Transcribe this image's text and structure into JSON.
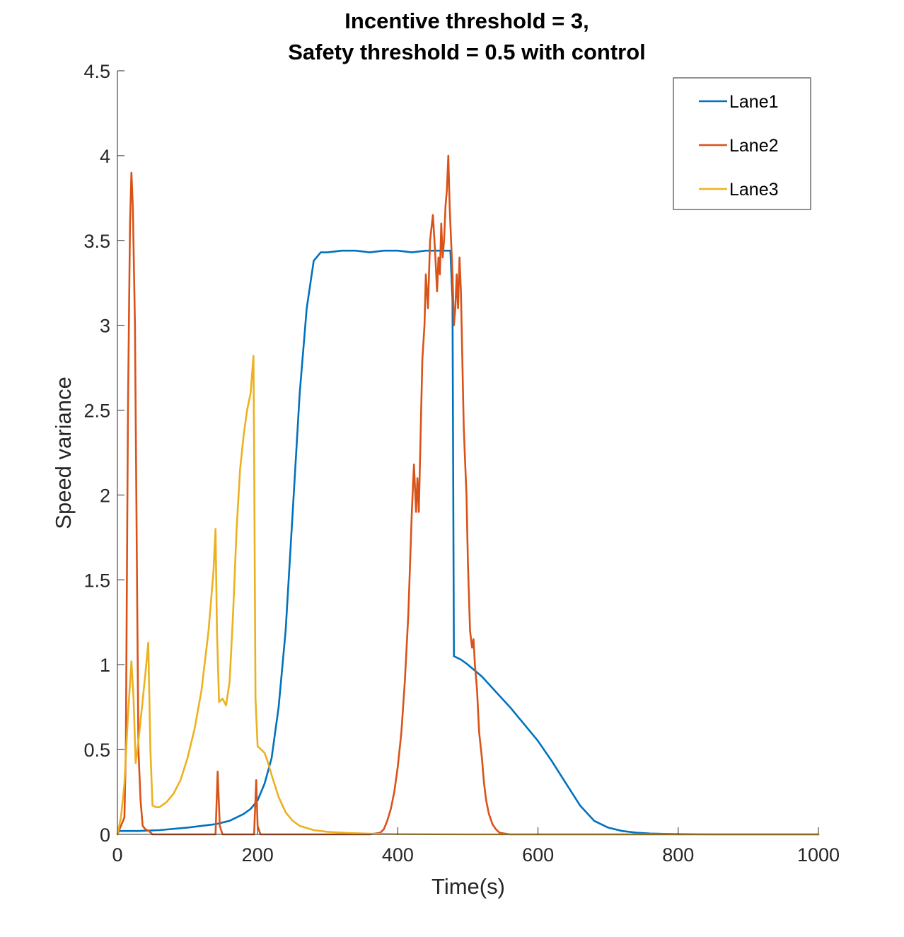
{
  "chart_data": {
    "type": "line",
    "title": [
      "Incentive threshold = 3,",
      "Safety threshold = 0.5 with control"
    ],
    "xlabel": "Time(s)",
    "ylabel": "Speed variance",
    "xlim": [
      0,
      1000
    ],
    "ylim": [
      0,
      4.5
    ],
    "xticks": [
      0,
      200,
      400,
      600,
      800,
      1000
    ],
    "xtick_labels": [
      "0",
      "200",
      "400",
      "600",
      "800",
      "1000"
    ],
    "yticks": [
      0,
      0.5,
      1,
      1.5,
      2,
      2.5,
      3,
      3.5,
      4,
      4.5
    ],
    "ytick_labels": [
      "0",
      "0.5",
      "1",
      "1.5",
      "2",
      "2.5",
      "3",
      "3.5",
      "4",
      "4.5"
    ],
    "grid": false,
    "legend_position": "top-right",
    "series": [
      {
        "name": "Lane1",
        "color": "#0072BD",
        "x": [
          0,
          2,
          5,
          10,
          30,
          60,
          100,
          140,
          160,
          180,
          190,
          200,
          210,
          220,
          230,
          240,
          250,
          260,
          270,
          280,
          290,
          300,
          320,
          340,
          360,
          380,
          400,
          420,
          440,
          460,
          470,
          475,
          478,
          480,
          490,
          500,
          520,
          540,
          560,
          580,
          600,
          620,
          640,
          660,
          680,
          700,
          720,
          740,
          760,
          780,
          800,
          850,
          900,
          950,
          1000
        ],
        "y": [
          0.0,
          0.02,
          0.02,
          0.02,
          0.02,
          0.025,
          0.04,
          0.06,
          0.08,
          0.12,
          0.15,
          0.2,
          0.3,
          0.45,
          0.75,
          1.2,
          1.9,
          2.6,
          3.1,
          3.38,
          3.43,
          3.43,
          3.44,
          3.44,
          3.43,
          3.44,
          3.44,
          3.43,
          3.44,
          3.44,
          3.44,
          3.44,
          3.15,
          1.05,
          1.03,
          1.0,
          0.93,
          0.84,
          0.75,
          0.65,
          0.55,
          0.43,
          0.3,
          0.17,
          0.08,
          0.04,
          0.02,
          0.01,
          0.005,
          0.003,
          0.002,
          0.0,
          0.0,
          0.0,
          0.0
        ]
      },
      {
        "name": "Lane2",
        "color": "#D95319",
        "x": [
          0,
          5,
          10,
          12,
          15,
          18,
          20,
          22,
          25,
          28,
          30,
          33,
          36,
          40,
          45,
          50,
          60,
          100,
          135,
          140,
          143,
          146,
          150,
          190,
          195,
          198,
          200,
          204,
          210,
          300,
          360,
          375,
          380,
          385,
          390,
          395,
          400,
          405,
          410,
          415,
          420,
          423,
          426,
          428,
          430,
          435,
          438,
          440,
          443,
          446,
          450,
          453,
          456,
          458,
          460,
          462,
          464,
          466,
          468,
          470,
          472,
          474,
          476,
          478,
          480,
          482,
          484,
          486,
          488,
          490,
          492,
          494,
          496,
          498,
          500,
          503,
          506,
          508,
          510,
          513,
          516,
          520,
          523,
          526,
          530,
          535,
          540,
          545,
          560,
          700,
          1000
        ],
        "y": [
          0.0,
          0.05,
          0.1,
          0.5,
          2.5,
          3.6,
          3.9,
          3.7,
          3.0,
          1.5,
          0.5,
          0.2,
          0.05,
          0.03,
          0.02,
          0.0,
          0.0,
          0.0,
          0.0,
          0.0,
          0.37,
          0.05,
          0.0,
          0.0,
          0.0,
          0.32,
          0.05,
          0.0,
          0.0,
          0.0,
          0.0,
          0.01,
          0.03,
          0.08,
          0.15,
          0.25,
          0.4,
          0.6,
          0.9,
          1.3,
          1.9,
          2.18,
          1.9,
          2.1,
          1.9,
          2.8,
          3.0,
          3.3,
          3.1,
          3.5,
          3.65,
          3.45,
          3.2,
          3.4,
          3.3,
          3.6,
          3.4,
          3.5,
          3.7,
          3.8,
          4.0,
          3.7,
          3.5,
          3.3,
          3.0,
          3.1,
          3.3,
          3.1,
          3.4,
          3.2,
          2.8,
          2.4,
          2.2,
          2.0,
          1.6,
          1.2,
          1.1,
          1.15,
          1.0,
          0.85,
          0.6,
          0.45,
          0.3,
          0.2,
          0.12,
          0.06,
          0.03,
          0.01,
          0.0,
          0.0,
          0.0
        ]
      },
      {
        "name": "Lane3",
        "color": "#EDB120",
        "x": [
          0,
          5,
          10,
          15,
          20,
          23,
          26,
          30,
          35,
          40,
          44,
          47,
          50,
          55,
          60,
          70,
          80,
          90,
          100,
          110,
          120,
          130,
          137,
          140,
          142,
          145,
          150,
          155,
          160,
          165,
          170,
          175,
          180,
          185,
          190,
          194,
          195,
          197,
          200,
          205,
          210,
          215,
          220,
          230,
          240,
          250,
          260,
          280,
          300,
          330,
          360,
          400,
          500,
          600,
          700,
          800,
          1000
        ],
        "y": [
          0.0,
          0.1,
          0.3,
          0.7,
          1.02,
          0.8,
          0.42,
          0.55,
          0.75,
          0.95,
          1.13,
          0.5,
          0.17,
          0.16,
          0.16,
          0.19,
          0.24,
          0.32,
          0.45,
          0.62,
          0.85,
          1.2,
          1.55,
          1.8,
          1.2,
          0.78,
          0.8,
          0.76,
          0.9,
          1.3,
          1.8,
          2.15,
          2.35,
          2.5,
          2.6,
          2.82,
          2.3,
          0.8,
          0.52,
          0.5,
          0.48,
          0.42,
          0.35,
          0.22,
          0.13,
          0.08,
          0.05,
          0.025,
          0.015,
          0.008,
          0.004,
          0.002,
          0.0,
          0.0,
          0.0,
          0.0,
          0.0
        ]
      }
    ]
  }
}
